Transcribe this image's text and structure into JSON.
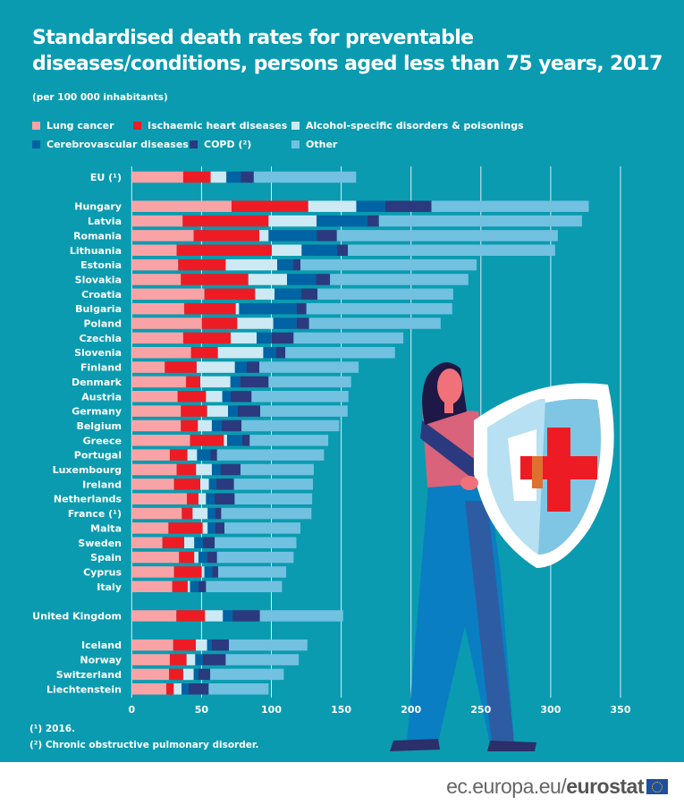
{
  "chart_data": {
    "type": "bar",
    "orientation": "horizontal",
    "stacked": true,
    "title": "Standardised death rates for preventable diseases/conditions, persons aged less than 75 years, 2017",
    "subtitle": "(per 100 000 inhabitants)",
    "xlim": [
      0,
      350
    ],
    "xticks": [
      0,
      50,
      100,
      150,
      200,
      250,
      300,
      350
    ],
    "grid": true,
    "legend_placement": "top",
    "categories": [
      "EU (¹)",
      "Hungary",
      "Latvia",
      "Romania",
      "Lithuania",
      "Estonia",
      "Slovakia",
      "Croatia",
      "Bulgaria",
      "Poland",
      "Czechia",
      "Slovenia",
      "Finland",
      "Denmark",
      "Austria",
      "Germany",
      "Belgium",
      "Greece",
      "Portugal",
      "Luxembourg",
      "Ireland",
      "Netherlands",
      "France (¹)",
      "Malta",
      "Sweden",
      "Spain",
      "Cyprus",
      "Italy",
      "United Kingdom",
      "Iceland",
      "Norway",
      "Switzerland",
      "Liechtenstein"
    ],
    "series": [
      {
        "name": "Lung cancer",
        "color": "#f9a3a6",
        "values": [
          36.9,
          71.5,
          36.5,
          44.4,
          32.2,
          33.3,
          35.2,
          52.1,
          37.6,
          50.2,
          36.9,
          42.5,
          23.7,
          38.9,
          32.9,
          35.2,
          35.2,
          41.8,
          27.3,
          32.2,
          30.3,
          39.5,
          35.9,
          26.3,
          22.0,
          33.9,
          30.3,
          29.0,
          32.0,
          29.7,
          27.3,
          26.7,
          24.8
        ]
      },
      {
        "name": "Ischaemic heart diseases",
        "color": "#ed1c24",
        "values": [
          19.6,
          54.9,
          61.5,
          47.0,
          68.1,
          34.0,
          48.3,
          36.3,
          36.9,
          25.4,
          34.0,
          19.2,
          22.8,
          10.2,
          20.3,
          18.8,
          12.2,
          24.2,
          12.6,
          13.9,
          18.8,
          8.3,
          7.7,
          24.5,
          15.6,
          10.9,
          19.9,
          11.1,
          20.5,
          16.2,
          12.0,
          10.2,
          5.3
        ]
      },
      {
        "name": "Alcohol-specific disorders & poisonings",
        "color": "#cde9f3",
        "values": [
          11.3,
          34.4,
          34.4,
          6.6,
          21.4,
          36.9,
          27.7,
          13.9,
          2.4,
          25.8,
          18.6,
          32.5,
          27.4,
          21.6,
          11.7,
          15.0,
          10.0,
          2.3,
          6.9,
          11.3,
          6.2,
          5.4,
          10.8,
          3.6,
          7.2,
          3.0,
          1.9,
          1.7,
          12.8,
          8.1,
          6.2,
          7.5,
          5.6
        ]
      },
      {
        "name": "Cerebrovascular diseases",
        "color": "#0063a3",
        "values": [
          10.2,
          20.7,
          36.3,
          34.6,
          25.4,
          11.3,
          20.7,
          19.0,
          41.2,
          16.7,
          10.6,
          9.1,
          8.5,
          7.0,
          6.0,
          7.0,
          6.9,
          10.9,
          9.6,
          6.2,
          5.3,
          6.2,
          5.6,
          5.6,
          6.2,
          6.4,
          5.5,
          6.0,
          6.9,
          3.4,
          5.3,
          3.4,
          4.9
        ]
      },
      {
        "name": "COPD (²)",
        "color": "#2b3a7e",
        "values": [
          9.4,
          33.1,
          8.3,
          14.3,
          7.7,
          5.3,
          10.1,
          11.7,
          7.0,
          8.9,
          15.8,
          6.7,
          9.0,
          20.3,
          14.9,
          16.0,
          14.3,
          5.3,
          4.7,
          14.3,
          12.6,
          14.3,
          4.1,
          6.4,
          8.4,
          6.9,
          4.3,
          5.4,
          19.6,
          12.2,
          16.5,
          8.4,
          14.5
        ]
      },
      {
        "name": "Other",
        "color": "#72c1e0",
        "values": [
          73.3,
          112.7,
          145.4,
          158.2,
          148.4,
          126.2,
          99.0,
          97.2,
          104.4,
          94.2,
          78.6,
          78.5,
          71.1,
          59.1,
          69.4,
          62.6,
          70.0,
          56.2,
          76.6,
          52.5,
          56.6,
          55.5,
          64.6,
          54.4,
          58.5,
          54.8,
          48.7,
          54.4,
          59.6,
          56.2,
          52.3,
          52.7,
          42.9
        ]
      }
    ]
  },
  "legend": [
    "Lung cancer",
    "Ischaemic heart diseases",
    "Alcohol-specific disorders & poisonings",
    "Cerebrovascular diseases",
    "COPD (²)",
    "Other"
  ],
  "notes": [
    "(¹) 2016.",
    "(²) Chronic obstructive pulmonary disorder."
  ],
  "footer": {
    "domain": "ec.europa.eu/",
    "brand": "eurostat"
  },
  "colors": {
    "background": "#0a9bb0",
    "text": "#ffffff"
  }
}
